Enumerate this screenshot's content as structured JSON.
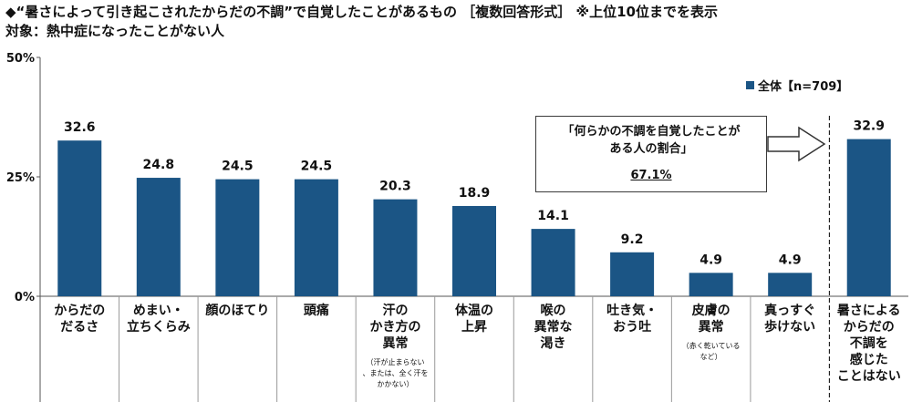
{
  "header": {
    "title": "◆“暑さによって引き起こされたからだの不調”で自覚したことがあるもの ［複数回答形式］ ※上位10位までを表示",
    "subtitle": "対象：熱中症になったことがない人"
  },
  "legend": {
    "label": "全体【n=709】",
    "color": "#1b5585"
  },
  "callout": {
    "text": "「何らかの不調を自覚したことが\nある人の割合」",
    "value": "67.1%"
  },
  "chart_data": {
    "type": "bar",
    "title": "◆“暑さによって引き起こされたからだの不調”で自覚したことがあるもの ［複数回答形式］ ※上位10位までを表示",
    "ylim": [
      0,
      50
    ],
    "yticks": [
      0,
      25,
      50
    ],
    "ytick_labels": [
      "0%",
      "25%",
      "50%"
    ],
    "grid": false,
    "legend_position": "top-right",
    "categories": [
      "からだの\nだるさ",
      "めまい・\n立ちくらみ",
      "顔のほてり",
      "頭痛",
      "汗の\nかき方の\n異常",
      "体温の\n上昇",
      "喉の\n異常な\n渇き",
      "吐き気・\nおう吐",
      "皮膚の\n異常",
      "真っすぐ\n歩けない",
      "暑さによる\nからだの\n不調を\n感じた\nことはない"
    ],
    "category_notes": [
      "",
      "",
      "",
      "",
      "（汗が止まらない\n、または、全く汗を\nかかない）",
      "",
      "",
      "",
      "（赤く乾いている\nなど）",
      "",
      ""
    ],
    "series": [
      {
        "name": "全体【n=709】",
        "values": [
          32.6,
          24.8,
          24.5,
          24.5,
          20.3,
          18.9,
          14.1,
          9.2,
          4.9,
          4.9,
          32.9
        ],
        "labels": [
          "32.6",
          "24.8",
          "24.5",
          "24.5",
          "20.3",
          "18.9",
          "14.1",
          "9.2",
          "4.9",
          "4.9",
          "32.9"
        ]
      }
    ],
    "colors": {
      "bar": "#1b5585",
      "axis": "#555555",
      "divider": "#222222"
    }
  }
}
